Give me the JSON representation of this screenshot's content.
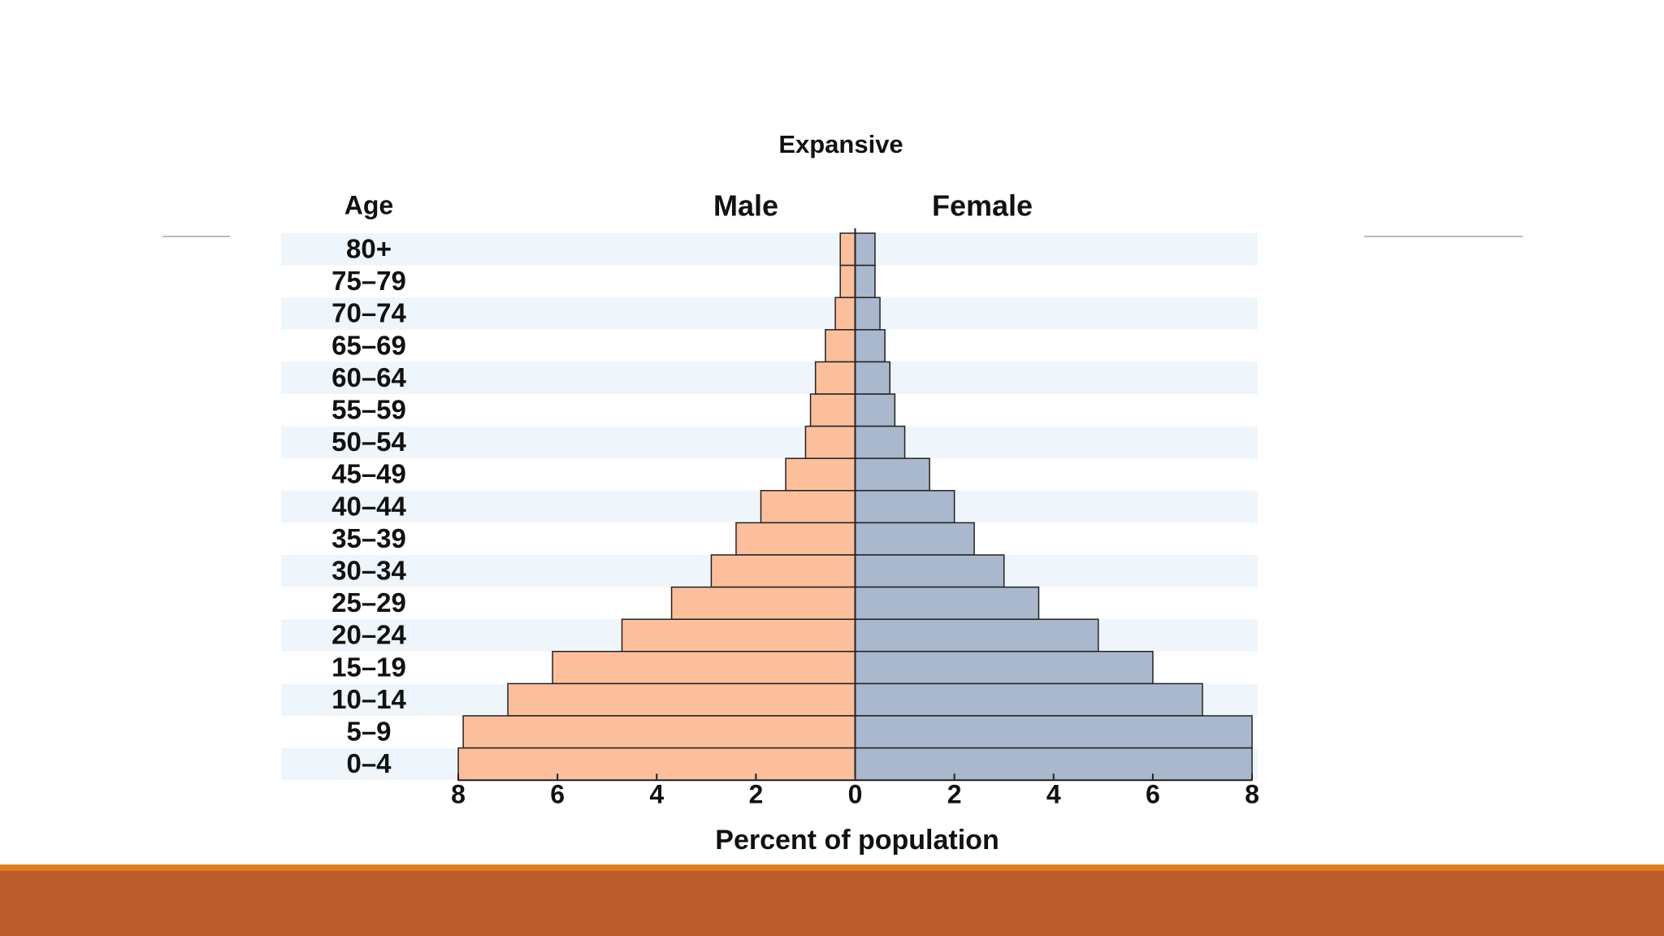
{
  "chart_data": {
    "type": "pyramid",
    "title": "Expansive",
    "category_label": "Age",
    "xlabel": "Percent of population",
    "categories": [
      "80+",
      "75–79",
      "70–74",
      "65–69",
      "60–64",
      "55–59",
      "50–54",
      "45–49",
      "40–44",
      "35–39",
      "30–34",
      "25–29",
      "20–24",
      "15–19",
      "10–14",
      "5–9",
      "0–4"
    ],
    "series": [
      {
        "name": "Male",
        "color": "#fbbf9c",
        "values": [
          0.3,
          0.3,
          0.4,
          0.6,
          0.8,
          0.9,
          1.0,
          1.4,
          1.9,
          2.4,
          2.9,
          3.7,
          4.7,
          6.1,
          7.0,
          7.9,
          8.0
        ]
      },
      {
        "name": "Female",
        "color": "#a9b8cc",
        "values": [
          0.4,
          0.4,
          0.5,
          0.6,
          0.7,
          0.8,
          1.0,
          1.5,
          2.0,
          2.4,
          3.0,
          3.7,
          4.9,
          6.0,
          7.0,
          8.0,
          8.0
        ]
      }
    ],
    "xlim": [
      -8,
      8
    ],
    "xticks": [
      {
        "value": -8,
        "label": "8"
      },
      {
        "value": -6,
        "label": "6"
      },
      {
        "value": -4,
        "label": "4"
      },
      {
        "value": -2,
        "label": "2"
      },
      0,
      2,
      4,
      6,
      8
    ]
  }
}
